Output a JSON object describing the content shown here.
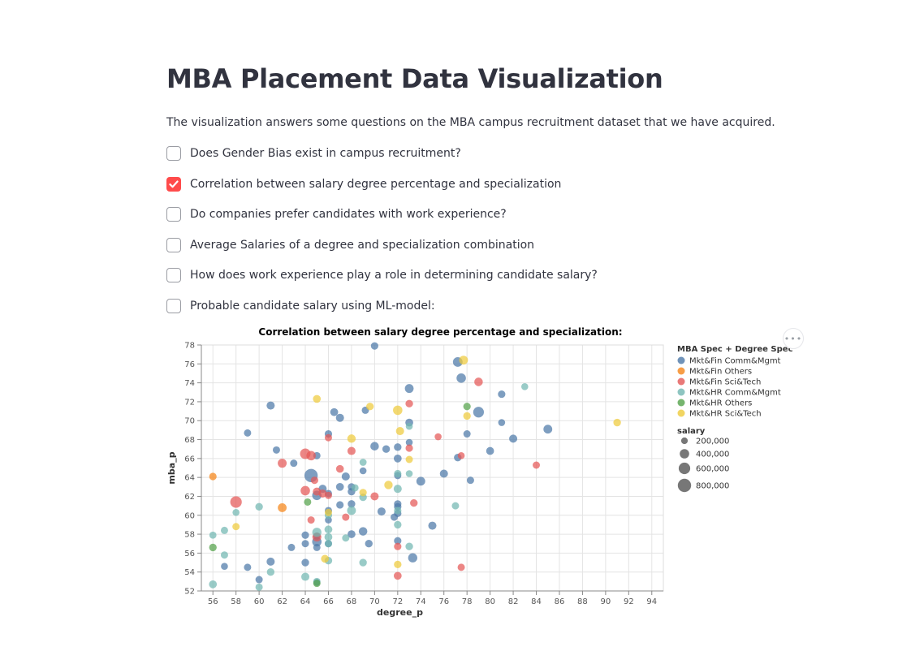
{
  "page": {
    "title": "MBA Placement Data Visualization",
    "intro": "The visualization answers some questions on the MBA campus recruitment dataset that we have acquired."
  },
  "checkboxes": [
    {
      "label": "Does Gender Bias exist in campus recruitment?",
      "checked": false
    },
    {
      "label": "Correlation between salary degree percentage and specialization",
      "checked": true
    },
    {
      "label": "Do companies prefer candidates with work experience?",
      "checked": false
    },
    {
      "label": "Average Salaries of a degree and specialization combination",
      "checked": false
    },
    {
      "label": "How does work experience play a role in determining candidate salary?",
      "checked": false
    },
    {
      "label": "Probable candidate salary using ML-model:",
      "checked": false
    }
  ],
  "chart_actions": {
    "icon": "more-horizontal-icon",
    "label": "•••"
  },
  "chart_data": {
    "type": "scatter",
    "title": "Correlation between salary degree percentage and specialization:",
    "xlabel": "degree_p",
    "ylabel": "mba_p",
    "xlim": [
      55,
      95
    ],
    "ylim": [
      52,
      78
    ],
    "x_ticks": [
      56,
      58,
      60,
      62,
      64,
      66,
      68,
      70,
      72,
      74,
      76,
      78,
      80,
      82,
      84,
      86,
      88,
      90,
      92,
      94
    ],
    "y_ticks": [
      52,
      54,
      56,
      58,
      60,
      62,
      64,
      66,
      68,
      70,
      72,
      74,
      76,
      78
    ],
    "grid": true,
    "legend_position": "right",
    "legend_title": "MBA Spec + Degree Spec",
    "size_title": "salary",
    "size_legend": [
      {
        "label": "200,000",
        "value": 200000
      },
      {
        "label": "400,000",
        "value": 400000
      },
      {
        "label": "600,000",
        "value": 600000
      },
      {
        "label": "800,000",
        "value": 800000
      }
    ],
    "series": [
      {
        "name": "Mkt&Fin Comm&Mgmt",
        "color": "#4c78a8",
        "points": [
          [
            70,
            77.9,
            250000
          ],
          [
            77.2,
            76.2,
            420000
          ],
          [
            77.5,
            74.5,
            400000
          ],
          [
            73,
            73.4,
            350000
          ],
          [
            81,
            72.8,
            250000
          ],
          [
            61,
            71.6,
            300000
          ],
          [
            69.2,
            71.1,
            240000
          ],
          [
            66.5,
            70.9,
            280000
          ],
          [
            67,
            70.3,
            300000
          ],
          [
            79,
            70.9,
            520000
          ],
          [
            73,
            69.8,
            280000
          ],
          [
            81,
            69.8,
            220000
          ],
          [
            85,
            69.1,
            350000
          ],
          [
            59,
            68.7,
            240000
          ],
          [
            66,
            68.6,
            250000
          ],
          [
            78,
            68.6,
            240000
          ],
          [
            82,
            68.1,
            300000
          ],
          [
            73,
            67.7,
            220000
          ],
          [
            70,
            67.3,
            330000
          ],
          [
            71,
            67.0,
            260000
          ],
          [
            72,
            67.2,
            260000
          ],
          [
            61.5,
            66.9,
            240000
          ],
          [
            80,
            66.8,
            280000
          ],
          [
            72,
            66.0,
            280000
          ],
          [
            77.2,
            66.1,
            260000
          ],
          [
            65,
            66.3,
            240000
          ],
          [
            63,
            65.5,
            240000
          ],
          [
            69,
            64.7,
            220000
          ],
          [
            76,
            64.4,
            300000
          ],
          [
            72,
            64.2,
            240000
          ],
          [
            67.5,
            64.1,
            300000
          ],
          [
            64.5,
            64.2,
            800000
          ],
          [
            74,
            63.6,
            350000
          ],
          [
            78.3,
            63.7,
            240000
          ],
          [
            67,
            63.0,
            280000
          ],
          [
            68,
            63.0,
            250000
          ],
          [
            65.5,
            62.8,
            300000
          ],
          [
            68,
            62.5,
            260000
          ],
          [
            66,
            62.3,
            240000
          ],
          [
            65,
            62.1,
            400000
          ],
          [
            67,
            61.1,
            250000
          ],
          [
            68,
            61.2,
            260000
          ],
          [
            72,
            61.2,
            250000
          ],
          [
            72,
            60.9,
            250000
          ],
          [
            66,
            60.5,
            240000
          ],
          [
            70.6,
            60.4,
            300000
          ],
          [
            72,
            60.2,
            250000
          ],
          [
            71.7,
            59.8,
            240000
          ],
          [
            66,
            59.5,
            220000
          ],
          [
            75,
            58.9,
            300000
          ],
          [
            69,
            58.3,
            330000
          ],
          [
            68,
            58.0,
            280000
          ],
          [
            64,
            57.9,
            250000
          ],
          [
            65,
            57.8,
            240000
          ],
          [
            65,
            57.2,
            400000
          ],
          [
            64,
            57.0,
            240000
          ],
          [
            69.5,
            57.0,
            260000
          ],
          [
            66,
            57.0,
            240000
          ],
          [
            72,
            57.3,
            250000
          ],
          [
            62.8,
            56.6,
            240000
          ],
          [
            65,
            56.6,
            240000
          ],
          [
            73.3,
            55.5,
            380000
          ],
          [
            61,
            55.1,
            300000
          ],
          [
            64,
            55.0,
            260000
          ],
          [
            57,
            54.6,
            220000
          ],
          [
            59,
            54.5,
            240000
          ],
          [
            60,
            53.2,
            240000
          ],
          [
            65,
            52.9,
            220000
          ]
        ]
      },
      {
        "name": "Mkt&Fin Others",
        "color": "#f58518",
        "points": [
          [
            56,
            64.1,
            250000
          ],
          [
            62,
            60.8,
            350000
          ]
        ]
      },
      {
        "name": "Mkt&Fin Sci&Tech",
        "color": "#e45756",
        "points": [
          [
            79,
            74.1,
            330000
          ],
          [
            73,
            71.8,
            260000
          ],
          [
            75.5,
            68.3,
            220000
          ],
          [
            66,
            68.2,
            240000
          ],
          [
            73,
            67.1,
            250000
          ],
          [
            68,
            66.8,
            300000
          ],
          [
            64,
            66.5,
            500000
          ],
          [
            64.5,
            66.3,
            400000
          ],
          [
            77.5,
            66.3,
            220000
          ],
          [
            62,
            65.5,
            360000
          ],
          [
            84,
            65.3,
            240000
          ],
          [
            67,
            64.9,
            270000
          ],
          [
            64.8,
            63.7,
            250000
          ],
          [
            64,
            62.6,
            400000
          ],
          [
            65,
            62.5,
            300000
          ],
          [
            65.5,
            62.3,
            300000
          ],
          [
            66,
            62.1,
            240000
          ],
          [
            70,
            62.0,
            300000
          ],
          [
            58,
            61.4,
            600000
          ],
          [
            73.4,
            61.3,
            260000
          ],
          [
            67.5,
            59.8,
            240000
          ],
          [
            64.5,
            59.5,
            240000
          ],
          [
            65,
            57.7,
            360000
          ],
          [
            72,
            56.7,
            250000
          ],
          [
            77.5,
            54.5,
            240000
          ],
          [
            72,
            53.6,
            280000
          ]
        ]
      },
      {
        "name": "Mkt&Fin Others",
        "color": "#f58518",
        "points": []
      },
      {
        "name": "Mkt&HR Comm&Mgmt",
        "color": "#72b7b2",
        "points": [
          [
            83,
            73.6,
            220000
          ],
          [
            73,
            69.4,
            220000
          ],
          [
            69,
            65.6,
            230000
          ],
          [
            72,
            64.4,
            250000
          ],
          [
            73,
            64.4,
            220000
          ],
          [
            68.3,
            62.9,
            240000
          ],
          [
            69,
            61.9,
            260000
          ],
          [
            72,
            62.8,
            300000
          ],
          [
            58,
            60.3,
            220000
          ],
          [
            60,
            60.9,
            260000
          ],
          [
            77,
            61.0,
            240000
          ],
          [
            68,
            60.5,
            350000
          ],
          [
            72,
            60.5,
            250000
          ],
          [
            66,
            60.0,
            250000
          ],
          [
            72,
            59.0,
            260000
          ],
          [
            57,
            58.4,
            240000
          ],
          [
            56,
            57.9,
            230000
          ],
          [
            65,
            58.2,
            380000
          ],
          [
            66,
            58.5,
            280000
          ],
          [
            66,
            57.7,
            280000
          ],
          [
            67.5,
            57.6,
            240000
          ],
          [
            66,
            57.0,
            250000
          ],
          [
            73,
            56.7,
            260000
          ],
          [
            57,
            55.8,
            240000
          ],
          [
            66,
            55.2,
            260000
          ],
          [
            69,
            55.0,
            260000
          ],
          [
            61,
            54.0,
            260000
          ],
          [
            64,
            53.5,
            300000
          ],
          [
            56,
            52.7,
            280000
          ],
          [
            60,
            52.4,
            240000
          ],
          [
            65,
            53.0,
            240000
          ]
        ]
      },
      {
        "name": "Mkt&HR Others",
        "color": "#54a24b",
        "points": [
          [
            78,
            71.5,
            250000
          ],
          [
            64.2,
            61.4,
            240000
          ],
          [
            56,
            56.6,
            260000
          ],
          [
            65,
            52.8,
            240000
          ]
        ]
      },
      {
        "name": "Mkt&HR Sci&Tech",
        "color": "#eeca3b",
        "points": [
          [
            77.7,
            76.4,
            350000
          ],
          [
            65,
            72.3,
            280000
          ],
          [
            69.6,
            71.5,
            260000
          ],
          [
            72,
            71.1,
            400000
          ],
          [
            78,
            70.5,
            260000
          ],
          [
            91,
            69.8,
            260000
          ],
          [
            72.2,
            68.9,
            300000
          ],
          [
            68,
            68.1,
            320000
          ],
          [
            73,
            65.9,
            240000
          ],
          [
            71.2,
            63.2,
            320000
          ],
          [
            69,
            62.4,
            250000
          ],
          [
            66,
            60.3,
            240000
          ],
          [
            58,
            58.8,
            240000
          ],
          [
            65.7,
            55.4,
            280000
          ],
          [
            72,
            54.8,
            260000
          ]
        ]
      }
    ]
  }
}
